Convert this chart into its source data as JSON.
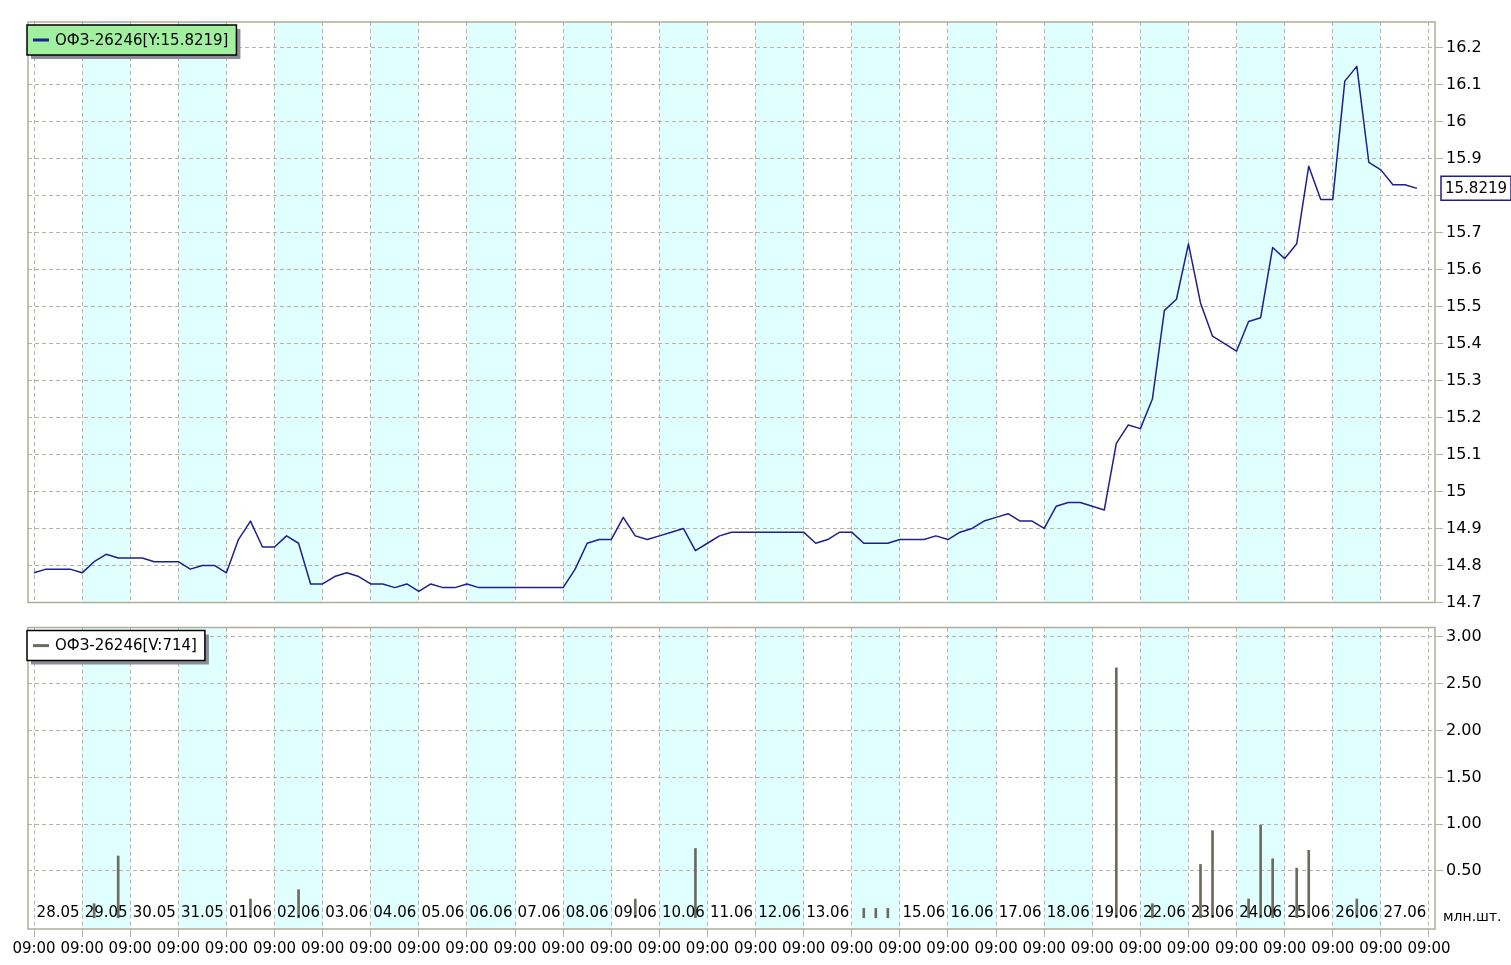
{
  "chart_data": [
    {
      "type": "line",
      "legend": "top left",
      "grid": true,
      "tick_labels": "y",
      "ylim": [
        14.7,
        16.27
      ],
      "categories": [
        null,
        null,
        null,
        null,
        null,
        null,
        null,
        null,
        null,
        null,
        null,
        null,
        null,
        null,
        null,
        null,
        null,
        null,
        null,
        null,
        null,
        null,
        null,
        null,
        null,
        null,
        null,
        null,
        null,
        null,
        null,
        null,
        null,
        null,
        null,
        null,
        null,
        null,
        null,
        null,
        null,
        null,
        null,
        null,
        null,
        null,
        null,
        null,
        null,
        null,
        null,
        null,
        null,
        null,
        null,
        null,
        null,
        null,
        null,
        null,
        null,
        null,
        null,
        null,
        null,
        null,
        null,
        null,
        null,
        null,
        null,
        null,
        null,
        null,
        null,
        null,
        null,
        null,
        null,
        null,
        null,
        null,
        null,
        null,
        null,
        null,
        null,
        null,
        null,
        null,
        null,
        null,
        null,
        null,
        null,
        null,
        null,
        null,
        null,
        null,
        null,
        null,
        null,
        null,
        null,
        null,
        null,
        null,
        null,
        null,
        null,
        null,
        null,
        null,
        null,
        null,
        null
      ],
      "yticks": [
        14.7,
        14.8,
        14.9,
        15,
        15.1,
        15.2,
        15.3,
        15.4,
        15.5,
        15.6,
        15.7,
        {
          "value": 15.8,
          "label": null
        },
        15.9,
        16,
        16.1,
        16.2
      ],
      "annotations": [
        "15.8219"
      ],
      "series": [
        {
          "name": "ОФЗ-26246[Y:15.8219]",
          "color": "#1f1f8f",
          "values": [
            14.78,
            14.79,
            14.79,
            14.79,
            14.78,
            14.81,
            14.83,
            14.82,
            14.82,
            14.82,
            14.81,
            14.81,
            14.81,
            14.79,
            14.8,
            14.8,
            14.78,
            14.87,
            14.92,
            14.85,
            14.85,
            14.88,
            14.86,
            14.75,
            14.75,
            14.77,
            14.78,
            14.77,
            14.75,
            14.75,
            14.74,
            14.75,
            14.73,
            14.75,
            14.74,
            14.74,
            14.75,
            14.74,
            14.74,
            14.74,
            14.74,
            14.74,
            14.74,
            14.74,
            14.74,
            14.79,
            14.86,
            14.87,
            14.87,
            14.93,
            14.88,
            14.87,
            14.88,
            14.89,
            14.9,
            14.84,
            14.86,
            14.88,
            14.89,
            14.89,
            14.89,
            14.89,
            14.89,
            14.89,
            14.89,
            14.86,
            14.87,
            14.89,
            14.89,
            14.86,
            14.86,
            14.86,
            14.87,
            14.87,
            14.87,
            14.88,
            14.87,
            14.89,
            14.9,
            14.92,
            14.93,
            14.94,
            14.92,
            14.92,
            14.9,
            14.96,
            14.97,
            14.97,
            14.96,
            14.95,
            15.13,
            15.18,
            15.17,
            15.25,
            15.49,
            15.52,
            15.67,
            15.51,
            15.42,
            15.4,
            15.38,
            15.46,
            15.47,
            15.66,
            15.63,
            15.67,
            15.88,
            15.79,
            15.79,
            16.11,
            16.15,
            15.89,
            15.87,
            15.83,
            15.83,
            15.82,
            null
          ]
        }
      ]
    },
    {
      "type": "bar",
      "legend": "top left",
      "grid": true,
      "ylabel": "млн.шт.",
      "ylim": [
        -0.12,
        3.1
      ],
      "categories": [
        "09:00",
        null,
        "28.05",
        null,
        "09:00",
        null,
        "29.05",
        null,
        "09:00",
        null,
        "30.05",
        null,
        "09:00",
        null,
        "31.05",
        null,
        "09:00",
        null,
        "01.06",
        null,
        "09:00",
        null,
        "02.06",
        null,
        "09:00",
        null,
        "03.06",
        null,
        "09:00",
        null,
        "04.06",
        null,
        "09:00",
        null,
        "05.06",
        null,
        "09:00",
        null,
        "06.06",
        null,
        "09:00",
        null,
        "07.06",
        null,
        "09:00",
        null,
        "08.06",
        null,
        "09:00",
        null,
        "09.06",
        null,
        "09:00",
        null,
        "10.06",
        null,
        "09:00",
        null,
        "11.06",
        null,
        "09:00",
        null,
        "12.06",
        null,
        "09:00",
        null,
        "13.06",
        null,
        "09:00",
        null,
        null,
        null,
        "09:00",
        null,
        "15.06",
        null,
        "09:00",
        null,
        "16.06",
        null,
        "09:00",
        null,
        "17.06",
        null,
        "09:00",
        null,
        "18.06",
        null,
        "09:00",
        null,
        "19.06",
        null,
        "09:00",
        null,
        "22.06",
        null,
        "09:00",
        null,
        "23.06",
        null,
        "09:00",
        null,
        "24.06",
        null,
        "09:00",
        null,
        "25.06",
        null,
        "09:00",
        null,
        "26.06",
        null,
        "09:00",
        null,
        "27.06",
        null,
        "09:00"
      ],
      "yticks": [
        {
          "value": 0.5,
          "label": "0.50"
        },
        {
          "value": 1,
          "label": "1.00"
        },
        {
          "value": 1.5,
          "label": "1.50"
        },
        {
          "value": 2,
          "label": "2.00"
        },
        {
          "value": 2.5,
          "label": "2.50"
        },
        {
          "value": 3,
          "label": "3.00"
        }
      ],
      "series": [
        {
          "name": "ОФЗ-26246[V:714]",
          "color": "#6e6a60",
          "values": [
            null,
            null,
            null,
            null,
            null,
            0.15,
            null,
            0.66,
            null,
            null,
            null,
            null,
            null,
            null,
            null,
            null,
            null,
            null,
            0.2,
            null,
            null,
            null,
            0.3,
            null,
            null,
            null,
            null,
            null,
            null,
            null,
            null,
            null,
            null,
            null,
            null,
            null,
            null,
            null,
            null,
            null,
            null,
            null,
            null,
            null,
            null,
            null,
            null,
            null,
            null,
            null,
            0.2,
            null,
            null,
            null,
            null,
            0.74,
            null,
            null,
            null,
            null,
            null,
            null,
            null,
            null,
            null,
            null,
            null,
            null,
            null,
            0.1,
            0.1,
            0.1,
            null,
            null,
            null,
            null,
            null,
            null,
            null,
            null,
            null,
            null,
            null,
            null,
            null,
            null,
            null,
            null,
            null,
            null,
            2.67,
            null,
            null,
            0.15,
            null,
            null,
            null,
            0.57,
            0.93,
            null,
            null,
            0.2,
            0.99,
            0.63,
            null,
            0.53,
            0.72,
            null,
            null,
            null,
            0.2,
            null,
            null,
            null,
            null,
            null,
            null
          ]
        }
      ]
    }
  ]
}
